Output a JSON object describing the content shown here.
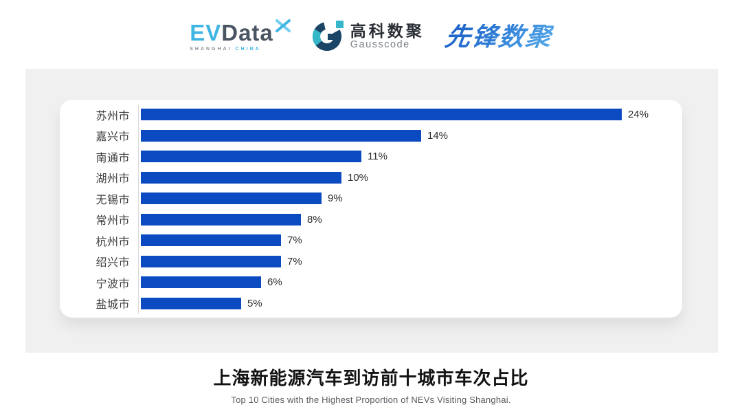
{
  "header": {
    "evdata": {
      "ev": "EV",
      "data": "Data",
      "sub_left": "SHANGHAI",
      "sub_right": "CHINA",
      "ev_color": "#3FB5E4",
      "data_color": "#4A5563"
    },
    "gausscode": {
      "cn": "高科数聚",
      "en": "Gausscode",
      "icon_navy": "#1B4566",
      "icon_teal": "#35B6C9"
    },
    "xianfeng": {
      "text": "先锋数聚",
      "color_start": "#1D5EC5",
      "color_end": "#55AAE9"
    }
  },
  "chart_data": {
    "type": "bar",
    "orientation": "horizontal",
    "title": "上海新能源汽车到访前十城市车次占比",
    "subtitle": "Top 10 Cities with the Highest Proportion of  NEVs Visiting Shanghai.",
    "categories": [
      "苏州市",
      "嘉兴市",
      "南通市",
      "湖州市",
      "无锡市",
      "常州市",
      "杭州市",
      "绍兴市",
      "宁波市",
      "盐城市"
    ],
    "values": [
      24,
      14,
      11,
      10,
      9,
      8,
      7,
      7,
      6,
      5
    ],
    "value_labels": [
      "24%",
      "14%",
      "11%",
      "10%",
      "9%",
      "8%",
      "7%",
      "7%",
      "6%",
      "5%"
    ],
    "unit": "%",
    "xlim": [
      0,
      24
    ],
    "grid": false,
    "legend": false,
    "bar_color": "#0C4AC1",
    "axis_line_color": "#D9D9D9"
  },
  "footer": {
    "title": "上海新能源汽车到访前十城市车次占比",
    "subtitle": "Top 10 Cities with the Highest Proportion of  NEVs Visiting Shanghai."
  },
  "colors": {
    "panel_bg": "#F0F0F0",
    "card_bg": "#FFFFFF",
    "label_text": "#3D3D3D",
    "value_text": "#2B2B2B"
  }
}
